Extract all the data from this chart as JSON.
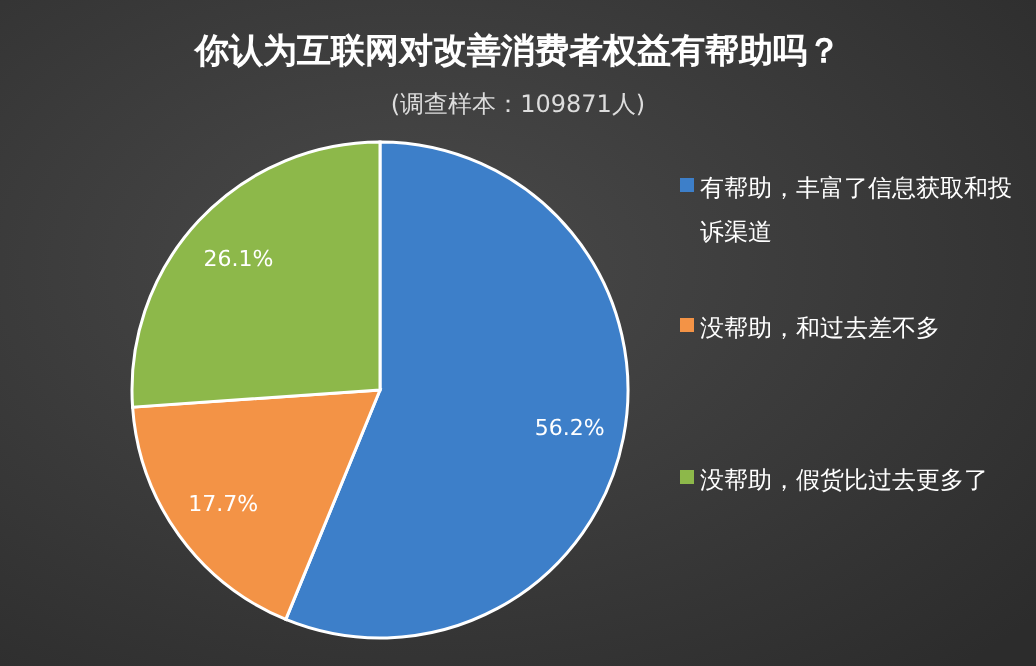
{
  "chart_data": {
    "type": "pie",
    "title": "你认为互联网对改善消费者权益有帮助吗？",
    "subtitle": "(调查样本：109871人)",
    "categories": [
      "有帮助，丰富了信息获取和投诉渠道",
      "没帮助，和过去差不多",
      "没帮助，假货比过去更多了"
    ],
    "values": [
      56.2,
      17.7,
      26.1
    ],
    "colors": [
      "#3d7fc9",
      "#f39346",
      "#8db84a"
    ],
    "value_labels": [
      "56.2%",
      "17.7%",
      "26.1%"
    ],
    "legend": "right"
  }
}
